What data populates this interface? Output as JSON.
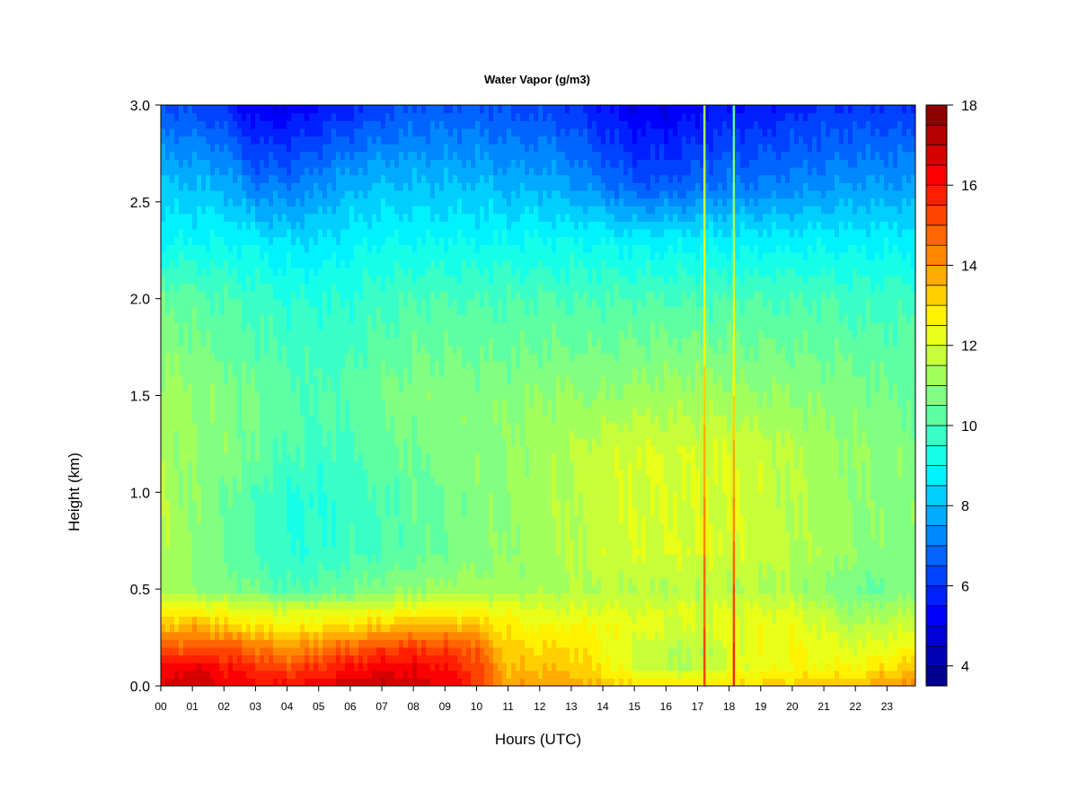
{
  "chart_data": {
    "type": "heatmap",
    "title": "Water Vapor (g/m3)",
    "xlabel": "Hours (UTC)",
    "ylabel": "Height (km)",
    "xlim": [
      0,
      23.9
    ],
    "ylim": [
      0.0,
      3.0
    ],
    "x_tick_labels": [
      "00",
      "01",
      "02",
      "03",
      "04",
      "05",
      "06",
      "07",
      "08",
      "09",
      "10",
      "11",
      "12",
      "13",
      "14",
      "15",
      "16",
      "17",
      "18",
      "19",
      "20",
      "21",
      "22",
      "23"
    ],
    "y_ticks": [
      0.0,
      0.5,
      1.0,
      1.5,
      2.0,
      2.5,
      3.0
    ],
    "y_tick_labels": [
      "0.0",
      "0.5",
      "1.0",
      "1.5",
      "2.0",
      "2.5",
      "3.0"
    ],
    "colorbar": {
      "min": 3.5,
      "max": 18,
      "step": 0.5,
      "ticks": [
        4,
        6,
        8,
        10,
        12,
        14,
        16,
        18
      ],
      "tick_labels": [
        "4",
        "6",
        "8",
        "10",
        "12",
        "14",
        "16",
        "18"
      ],
      "placement": "right"
    },
    "heights_km": [
      0.0,
      0.1,
      0.2,
      0.3,
      0.4,
      0.5,
      0.7,
      1.0,
      1.2,
      1.5,
      2.0,
      2.3,
      2.6,
      3.0
    ],
    "profiles": [
      {
        "hour": 0,
        "wv": [
          16.5,
          16.0,
          14.8,
          13.5,
          12.5,
          11.5,
          11.5,
          11.5,
          11.3,
          11.3,
          10.5,
          9.0,
          8.0,
          6.5
        ]
      },
      {
        "hour": 1,
        "wv": [
          17.0,
          16.5,
          15.0,
          13.8,
          12.5,
          11.0,
          11.0,
          11.0,
          11.0,
          11.0,
          10.2,
          9.0,
          8.0,
          6.3
        ]
      },
      {
        "hour": 2,
        "wv": [
          16.5,
          16.0,
          15.0,
          13.5,
          12.3,
          10.8,
          10.5,
          10.5,
          10.8,
          10.8,
          10.0,
          9.0,
          7.8,
          6.0
        ]
      },
      {
        "hour": 3,
        "wv": [
          16.2,
          15.5,
          14.5,
          13.0,
          12.0,
          10.5,
          10.0,
          10.0,
          10.5,
          10.5,
          9.8,
          8.8,
          7.0,
          5.0
        ]
      },
      {
        "hour": 4,
        "wv": [
          16.0,
          15.2,
          14.0,
          12.8,
          11.8,
          10.0,
          9.5,
          9.5,
          10.0,
          10.2,
          9.5,
          8.5,
          7.0,
          5.0
        ]
      },
      {
        "hour": 5,
        "wv": [
          16.3,
          15.5,
          14.3,
          13.0,
          12.0,
          10.2,
          9.5,
          9.5,
          9.8,
          10.0,
          9.5,
          8.5,
          7.3,
          5.5
        ]
      },
      {
        "hour": 6,
        "wv": [
          16.8,
          16.0,
          14.8,
          13.2,
          12.0,
          10.5,
          9.8,
          9.8,
          10.0,
          10.2,
          9.5,
          8.8,
          7.8,
          5.8
        ]
      },
      {
        "hour": 7,
        "wv": [
          17.0,
          16.3,
          15.2,
          13.5,
          12.2,
          10.8,
          10.0,
          10.0,
          10.3,
          10.5,
          9.8,
          9.0,
          8.0,
          6.2
        ]
      },
      {
        "hour": 8,
        "wv": [
          16.8,
          16.3,
          15.3,
          13.8,
          12.3,
          11.0,
          10.3,
          10.3,
          10.5,
          10.8,
          10.0,
          9.0,
          8.0,
          6.5
        ]
      },
      {
        "hour": 9,
        "wv": [
          16.5,
          16.0,
          15.2,
          13.8,
          12.5,
          11.2,
          10.5,
          10.5,
          10.8,
          10.8,
          10.0,
          9.0,
          8.0,
          6.5
        ]
      },
      {
        "hour": 10,
        "wv": [
          15.5,
          15.3,
          14.8,
          13.5,
          12.5,
          11.2,
          10.8,
          10.8,
          10.8,
          10.8,
          10.0,
          9.0,
          8.0,
          6.5
        ]
      },
      {
        "hour": 11,
        "wv": [
          13.8,
          13.5,
          13.2,
          12.8,
          12.3,
          11.3,
          11.0,
          11.0,
          11.0,
          10.8,
          10.0,
          9.0,
          7.8,
          6.3
        ]
      },
      {
        "hour": 12,
        "wv": [
          14.0,
          13.5,
          13.0,
          12.5,
          12.0,
          11.3,
          11.2,
          11.3,
          11.3,
          11.0,
          10.0,
          9.0,
          7.8,
          6.3
        ]
      },
      {
        "hour": 13,
        "wv": [
          13.8,
          13.3,
          13.0,
          12.6,
          12.0,
          11.5,
          11.5,
          11.5,
          11.5,
          11.0,
          10.0,
          9.0,
          7.5,
          6.0
        ]
      },
      {
        "hour": 14,
        "wv": [
          13.5,
          12.8,
          12.5,
          12.5,
          12.0,
          11.5,
          11.8,
          11.8,
          11.8,
          11.0,
          10.0,
          9.0,
          7.0,
          5.5
        ]
      },
      {
        "hour": 15,
        "wv": [
          13.0,
          12.0,
          12.0,
          12.3,
          12.0,
          11.5,
          12.0,
          12.0,
          12.0,
          11.2,
          10.0,
          8.8,
          6.5,
          5.0
        ]
      },
      {
        "hour": 16,
        "wv": [
          13.0,
          11.5,
          11.5,
          12.0,
          12.0,
          11.5,
          12.0,
          12.0,
          12.0,
          11.2,
          10.0,
          8.8,
          6.5,
          5.0
        ]
      },
      {
        "hour": 17,
        "wv": [
          13.0,
          11.5,
          11.5,
          12.0,
          12.0,
          11.5,
          12.0,
          12.0,
          12.0,
          11.2,
          10.0,
          8.8,
          6.8,
          5.3
        ]
      },
      {
        "hour": 18,
        "wv": [
          13.0,
          12.0,
          12.0,
          12.2,
          12.0,
          11.5,
          12.0,
          12.0,
          12.0,
          11.2,
          10.0,
          8.8,
          7.0,
          5.5
        ]
      },
      {
        "hour": 19,
        "wv": [
          13.2,
          12.3,
          12.3,
          12.3,
          12.0,
          11.5,
          11.8,
          11.8,
          11.8,
          11.0,
          10.0,
          8.8,
          7.0,
          5.5
        ]
      },
      {
        "hour": 20,
        "wv": [
          13.3,
          12.5,
          12.5,
          12.3,
          12.0,
          11.3,
          11.5,
          11.5,
          11.5,
          11.0,
          10.0,
          8.8,
          7.2,
          5.8
        ]
      },
      {
        "hour": 21,
        "wv": [
          13.5,
          12.5,
          12.3,
          12.0,
          11.5,
          11.0,
          11.3,
          11.3,
          11.3,
          10.8,
          10.0,
          8.8,
          7.3,
          6.0
        ]
      },
      {
        "hour": 22,
        "wv": [
          13.5,
          12.5,
          12.0,
          11.5,
          11.0,
          10.5,
          11.0,
          11.0,
          11.0,
          10.8,
          9.8,
          8.8,
          7.5,
          6.0
        ]
      },
      {
        "hour": 23,
        "wv": [
          14.0,
          13.0,
          12.3,
          11.8,
          11.2,
          10.5,
          10.8,
          10.8,
          10.8,
          10.5,
          9.8,
          8.8,
          7.5,
          6.0
        ]
      },
      {
        "hour": 23.9,
        "wv": [
          14.2,
          13.2,
          12.5,
          12.0,
          11.5,
          10.8,
          10.8,
          10.8,
          10.8,
          10.5,
          9.8,
          8.8,
          7.5,
          6.0
        ]
      }
    ],
    "spikes": [
      {
        "hour": 17.22,
        "wv_low": 15.5,
        "wv_high": 11.0
      },
      {
        "hour": 18.15,
        "wv_low": 16.0,
        "wv_high": 10.0
      }
    ]
  }
}
